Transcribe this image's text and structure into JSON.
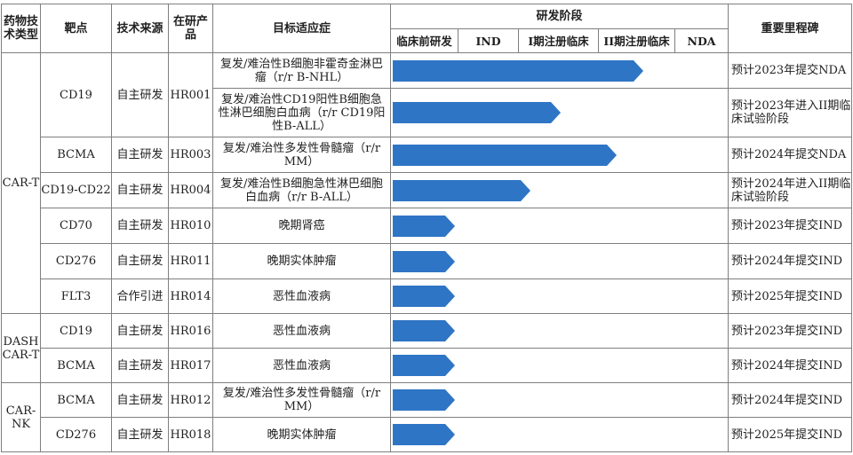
{
  "headers": {
    "type": "药物技术类型",
    "target": "靶点",
    "source": "技术来源",
    "code": "在研产品",
    "indication": "目标适应症",
    "stage_group": "研发阶段",
    "milestone": "重要里程碑"
  },
  "stages": [
    "临床前研发",
    "IND",
    "I期注册临床",
    "II期注册临床",
    "NDA"
  ],
  "colors": {
    "bar": "#2f75c5",
    "border": "#7f7f7f"
  },
  "groups": [
    {
      "type": "CAR-T"
    },
    {
      "type": "DASH CAR-T"
    },
    {
      "type": "CAR-NK"
    }
  ],
  "rows": [
    {
      "target": "CD19",
      "source": "自主研发",
      "code": "HR001",
      "indication": "复发/难治性B细胞非霍奇金淋巴瘤（r/r B-NHL）",
      "progress": 0.75,
      "milestone": "预计2023年提交NDA"
    },
    {
      "target": "CD19",
      "source": "自主研发",
      "code": "HR001",
      "indication": "复发/难治性CD19阳性B细胞急性淋巴细胞白血病（r/r CD19阳性B-ALL）",
      "progress": 0.505,
      "milestone": "预计2023年进入II期临床试验阶段"
    },
    {
      "target": "BCMA",
      "source": "自主研发",
      "code": "HR003",
      "indication": "复发/难治性多发性骨髓瘤（r/r MM）",
      "progress": 0.67,
      "milestone": "预计2024年提交NDA"
    },
    {
      "target": "CD19-CD22",
      "source": "自主研发",
      "code": "HR004",
      "indication": "复发/难治性B细胞急性淋巴细胞白血病（r/r B-ALL）",
      "progress": 0.415,
      "milestone": "预计2024年进入II期临床试验阶段"
    },
    {
      "target": "CD70",
      "source": "自主研发",
      "code": "HR010",
      "indication": "晚期肾癌",
      "progress": 0.19,
      "milestone": "预计2023年提交IND"
    },
    {
      "target": "CD276",
      "source": "自主研发",
      "code": "HR011",
      "indication": "晚期实体肿瘤",
      "progress": 0.19,
      "milestone": "预计2024年提交IND"
    },
    {
      "target": "FLT3",
      "source": "合作引进",
      "code": "HR014",
      "indication": "恶性血液病",
      "progress": 0.19,
      "milestone": "预计2025年提交IND"
    },
    {
      "target": "CD19",
      "source": "自主研发",
      "code": "HR016",
      "indication": "恶性血液病",
      "progress": 0.19,
      "milestone": "预计2023年提交IND"
    },
    {
      "target": "BCMA",
      "source": "自主研发",
      "code": "HR017",
      "indication": "恶性血液病",
      "progress": 0.19,
      "milestone": "预计2024年提交IND"
    },
    {
      "target": "BCMA",
      "source": "自主研发",
      "code": "HR012",
      "indication": "复发/难治性多发性骨髓瘤（r/r MM）",
      "progress": 0.19,
      "milestone": "预计2024年提交IND"
    },
    {
      "target": "CD276",
      "source": "自主研发",
      "code": "HR018",
      "indication": "晚期实体肿瘤",
      "progress": 0.19,
      "milestone": "预计2025年提交IND"
    }
  ]
}
